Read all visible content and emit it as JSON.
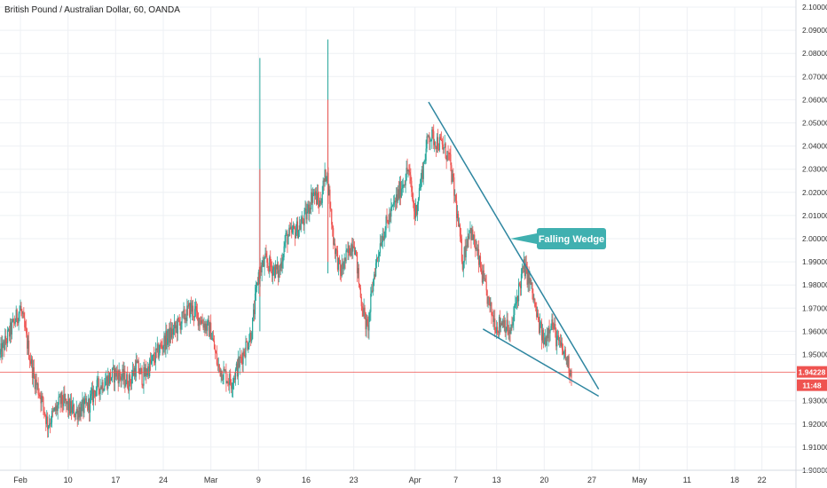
{
  "header": {
    "title": "British Pound / Australian Dollar, 60, OANDA"
  },
  "colors": {
    "up": "#26a69a",
    "down": "#ef5350",
    "grid": "#eef0f4",
    "trendline": "#2e86a0",
    "callout": "#40b0b0",
    "price_line": "#ef5350"
  },
  "chart_data": {
    "type": "candlestick",
    "title": "British Pound / Australian Dollar, 60, OANDA",
    "ylim": [
      1.9,
      2.1
    ],
    "y_ticks": [
      "1.90000",
      "1.91000",
      "1.92000",
      "1.93000",
      "1.95000",
      "1.96000",
      "1.97000",
      "1.98000",
      "1.99000",
      "2.00000",
      "2.01000",
      "2.02000",
      "2.03000",
      "2.04000",
      "2.05000",
      "2.06000",
      "2.07000",
      "2.08000",
      "2.09000",
      "2.10000"
    ],
    "x_ticks": [
      "Feb",
      "10",
      "17",
      "24",
      "Mar",
      "9",
      "16",
      "23",
      "Apr",
      "7",
      "13",
      "20",
      "27",
      "May",
      "11",
      "18",
      "22"
    ],
    "price_path": [
      {
        "date": "2020-01-31",
        "price": 1.95
      },
      {
        "date": "2020-02-03",
        "price": 1.97
      },
      {
        "date": "2020-02-04",
        "price": 1.955
      },
      {
        "date": "2020-02-05",
        "price": 1.94
      },
      {
        "date": "2020-02-06",
        "price": 1.932
      },
      {
        "date": "2020-02-07",
        "price": 1.92
      },
      {
        "date": "2020-02-09",
        "price": 1.93
      },
      {
        "date": "2020-02-11",
        "price": 1.925
      },
      {
        "date": "2020-02-13",
        "price": 1.928
      },
      {
        "date": "2020-02-14",
        "price": 1.935
      },
      {
        "date": "2020-02-17",
        "price": 1.942
      },
      {
        "date": "2020-02-19",
        "price": 1.938
      },
      {
        "date": "2020-02-20",
        "price": 1.945
      },
      {
        "date": "2020-02-21",
        "price": 1.94
      },
      {
        "date": "2020-02-24",
        "price": 1.955
      },
      {
        "date": "2020-02-26",
        "price": 1.962
      },
      {
        "date": "2020-02-28",
        "price": 1.97
      },
      {
        "date": "2020-03-02",
        "price": 1.96
      },
      {
        "date": "2020-03-03",
        "price": 1.945
      },
      {
        "date": "2020-03-05",
        "price": 1.938
      },
      {
        "date": "2020-03-06",
        "price": 1.945
      },
      {
        "date": "2020-03-08",
        "price": 1.96
      },
      {
        "date": "2020-03-09",
        "price": 1.985
      },
      {
        "date": "2020-03-10",
        "price": 1.99
      },
      {
        "date": "2020-03-12",
        "price": 1.985
      },
      {
        "date": "2020-03-13",
        "price": 2.0
      },
      {
        "date": "2020-03-15",
        "price": 2.005
      },
      {
        "date": "2020-03-16",
        "price": 2.01
      },
      {
        "date": "2020-03-17",
        "price": 2.02
      },
      {
        "date": "2020-03-18",
        "price": 2.015
      },
      {
        "date": "2020-03-19",
        "price": 2.03
      },
      {
        "date": "2020-03-20",
        "price": 2.0
      },
      {
        "date": "2020-03-21",
        "price": 1.985
      },
      {
        "date": "2020-03-23",
        "price": 2.0
      },
      {
        "date": "2020-03-24",
        "price": 1.975
      },
      {
        "date": "2020-03-25",
        "price": 1.96
      },
      {
        "date": "2020-03-26",
        "price": 1.985
      },
      {
        "date": "2020-03-27",
        "price": 2.0
      },
      {
        "date": "2020-03-29",
        "price": 2.015
      },
      {
        "date": "2020-03-31",
        "price": 2.03
      },
      {
        "date": "2020-04-01",
        "price": 2.01
      },
      {
        "date": "2020-04-03",
        "price": 2.045
      },
      {
        "date": "2020-04-05",
        "price": 2.04
      },
      {
        "date": "2020-04-06",
        "price": 2.035
      },
      {
        "date": "2020-04-07",
        "price": 2.015
      },
      {
        "date": "2020-04-08",
        "price": 1.99
      },
      {
        "date": "2020-04-09",
        "price": 2.005
      },
      {
        "date": "2020-04-10",
        "price": 1.995
      },
      {
        "date": "2020-04-12",
        "price": 1.97
      },
      {
        "date": "2020-04-13",
        "price": 1.962
      },
      {
        "date": "2020-04-14",
        "price": 1.965
      },
      {
        "date": "2020-04-15",
        "price": 1.958
      },
      {
        "date": "2020-04-16",
        "price": 1.975
      },
      {
        "date": "2020-04-17",
        "price": 1.988
      },
      {
        "date": "2020-04-18",
        "price": 1.98
      },
      {
        "date": "2020-04-19",
        "price": 1.965
      },
      {
        "date": "2020-04-20",
        "price": 1.955
      },
      {
        "date": "2020-04-21",
        "price": 1.965
      },
      {
        "date": "2020-04-22",
        "price": 1.955
      },
      {
        "date": "2020-04-23",
        "price": 1.95
      },
      {
        "date": "2020-04-24",
        "price": 1.942
      }
    ],
    "annotations": [
      {
        "type": "trendline",
        "name": "upper",
        "from": {
          "date": "2020-04-03",
          "price": 2.059
        },
        "to": {
          "date": "2020-04-28",
          "price": 1.935
        }
      },
      {
        "type": "trendline",
        "name": "lower",
        "from": {
          "date": "2020-04-11",
          "price": 1.961
        },
        "to": {
          "date": "2020-04-28",
          "price": 1.932
        }
      },
      {
        "type": "callout",
        "text": "Falling Wedge",
        "anchor": {
          "date": "2020-04-15",
          "price": 2.0
        }
      }
    ],
    "current_price": "1.94228",
    "current_price_value": 1.94228,
    "countdown": "11:48",
    "x_range": [
      "2020-01-31",
      "2020-05-27"
    ]
  }
}
